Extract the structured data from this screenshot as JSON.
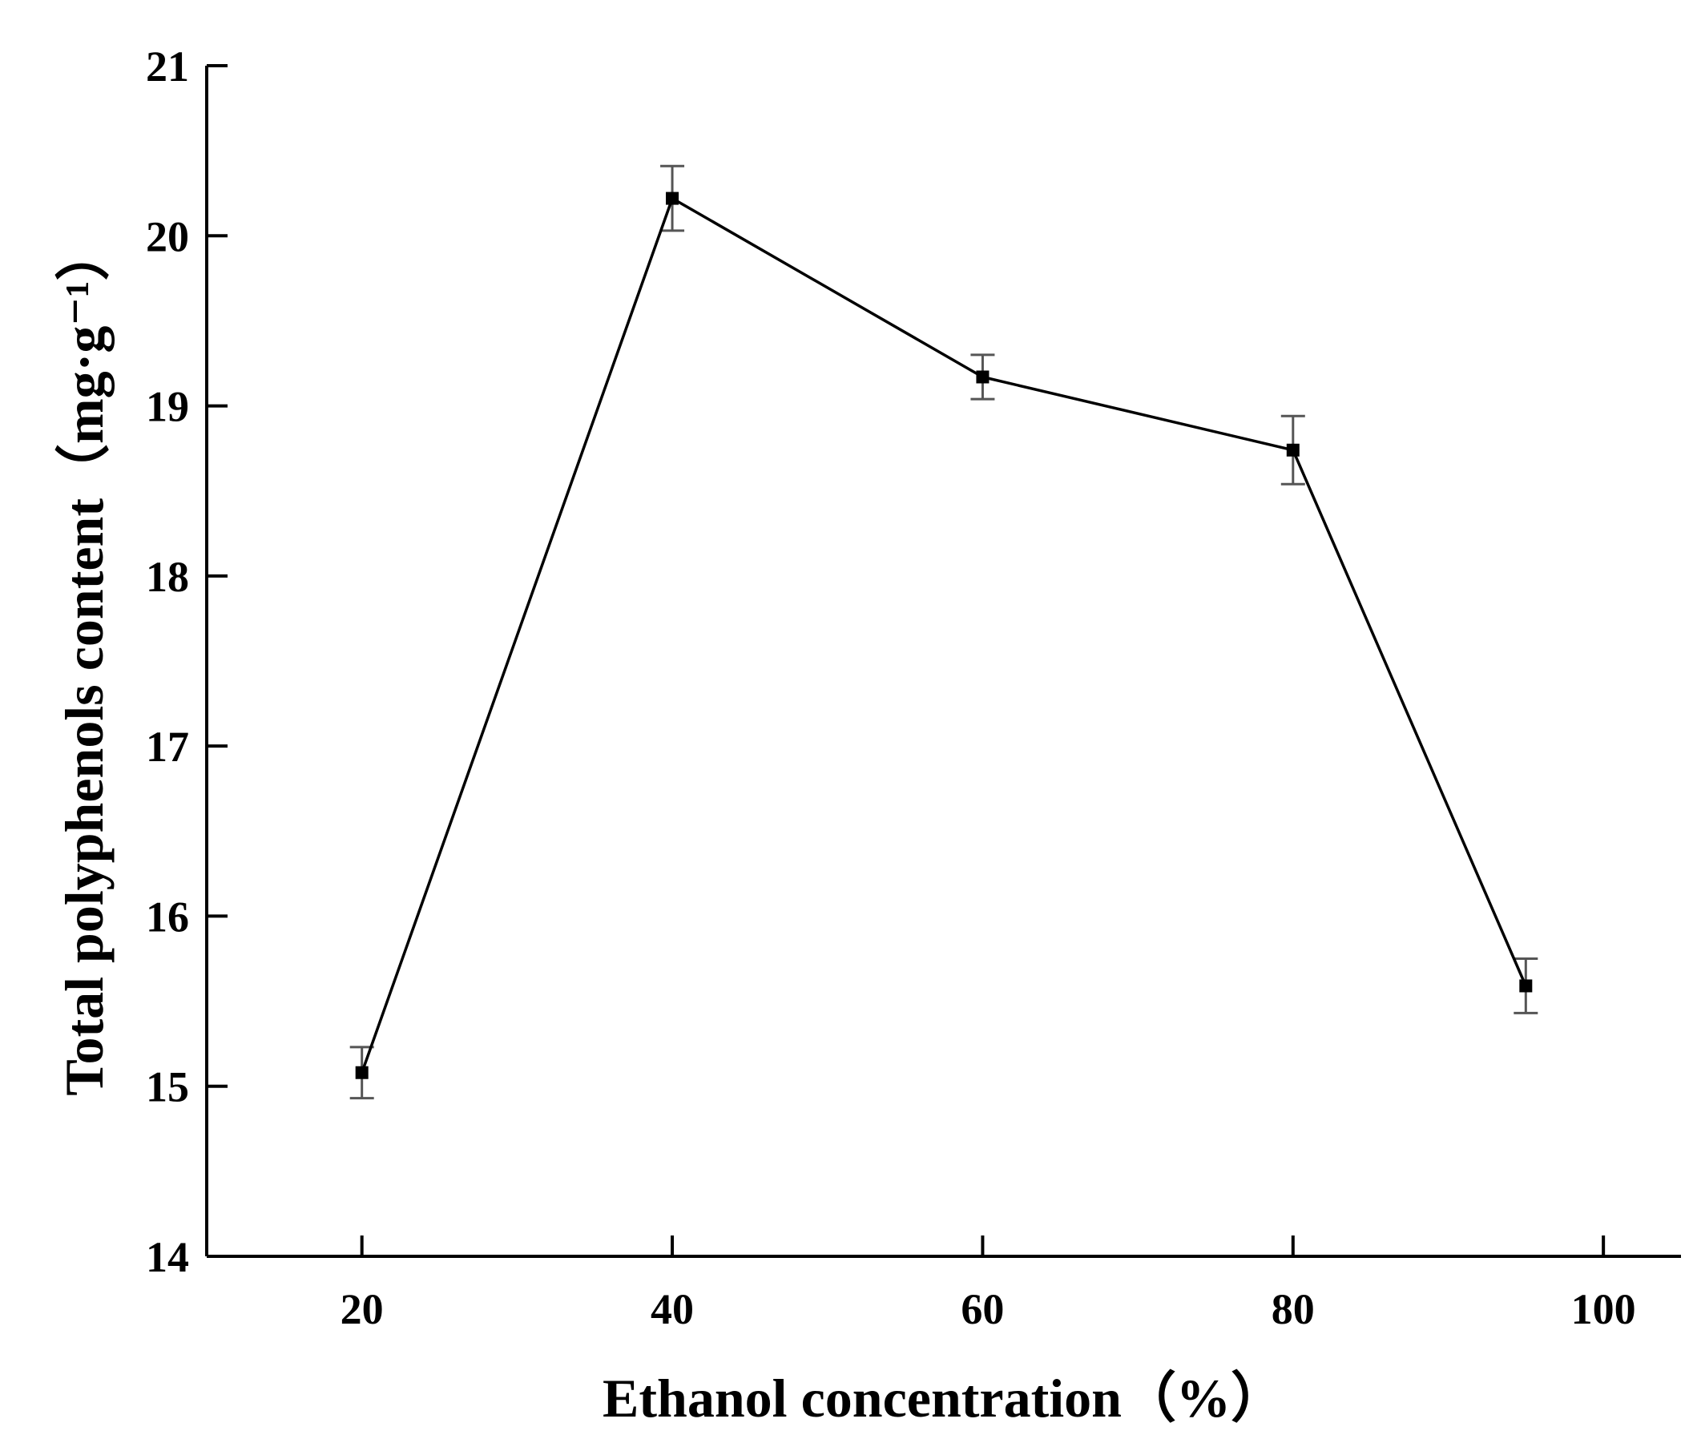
{
  "chart_data": {
    "type": "line",
    "title": "",
    "xlabel": "Ethanol concentration（%）",
    "ylabel": "Total polyphenols content（mg·g⁻¹）",
    "xlim": [
      10,
      105
    ],
    "ylim": [
      14,
      21
    ],
    "xticks": [
      20,
      40,
      60,
      80,
      100
    ],
    "yticks": [
      14,
      15,
      16,
      17,
      18,
      19,
      20,
      21
    ],
    "grid": false,
    "legend": "none",
    "series": [
      {
        "x": [
          20,
          40,
          60,
          80,
          95
        ],
        "y": [
          15.08,
          20.22,
          19.17,
          18.74,
          15.59
        ],
        "error": [
          0.15,
          0.19,
          0.13,
          0.2,
          0.16
        ],
        "color": "#000000",
        "marker": "square"
      }
    ]
  }
}
